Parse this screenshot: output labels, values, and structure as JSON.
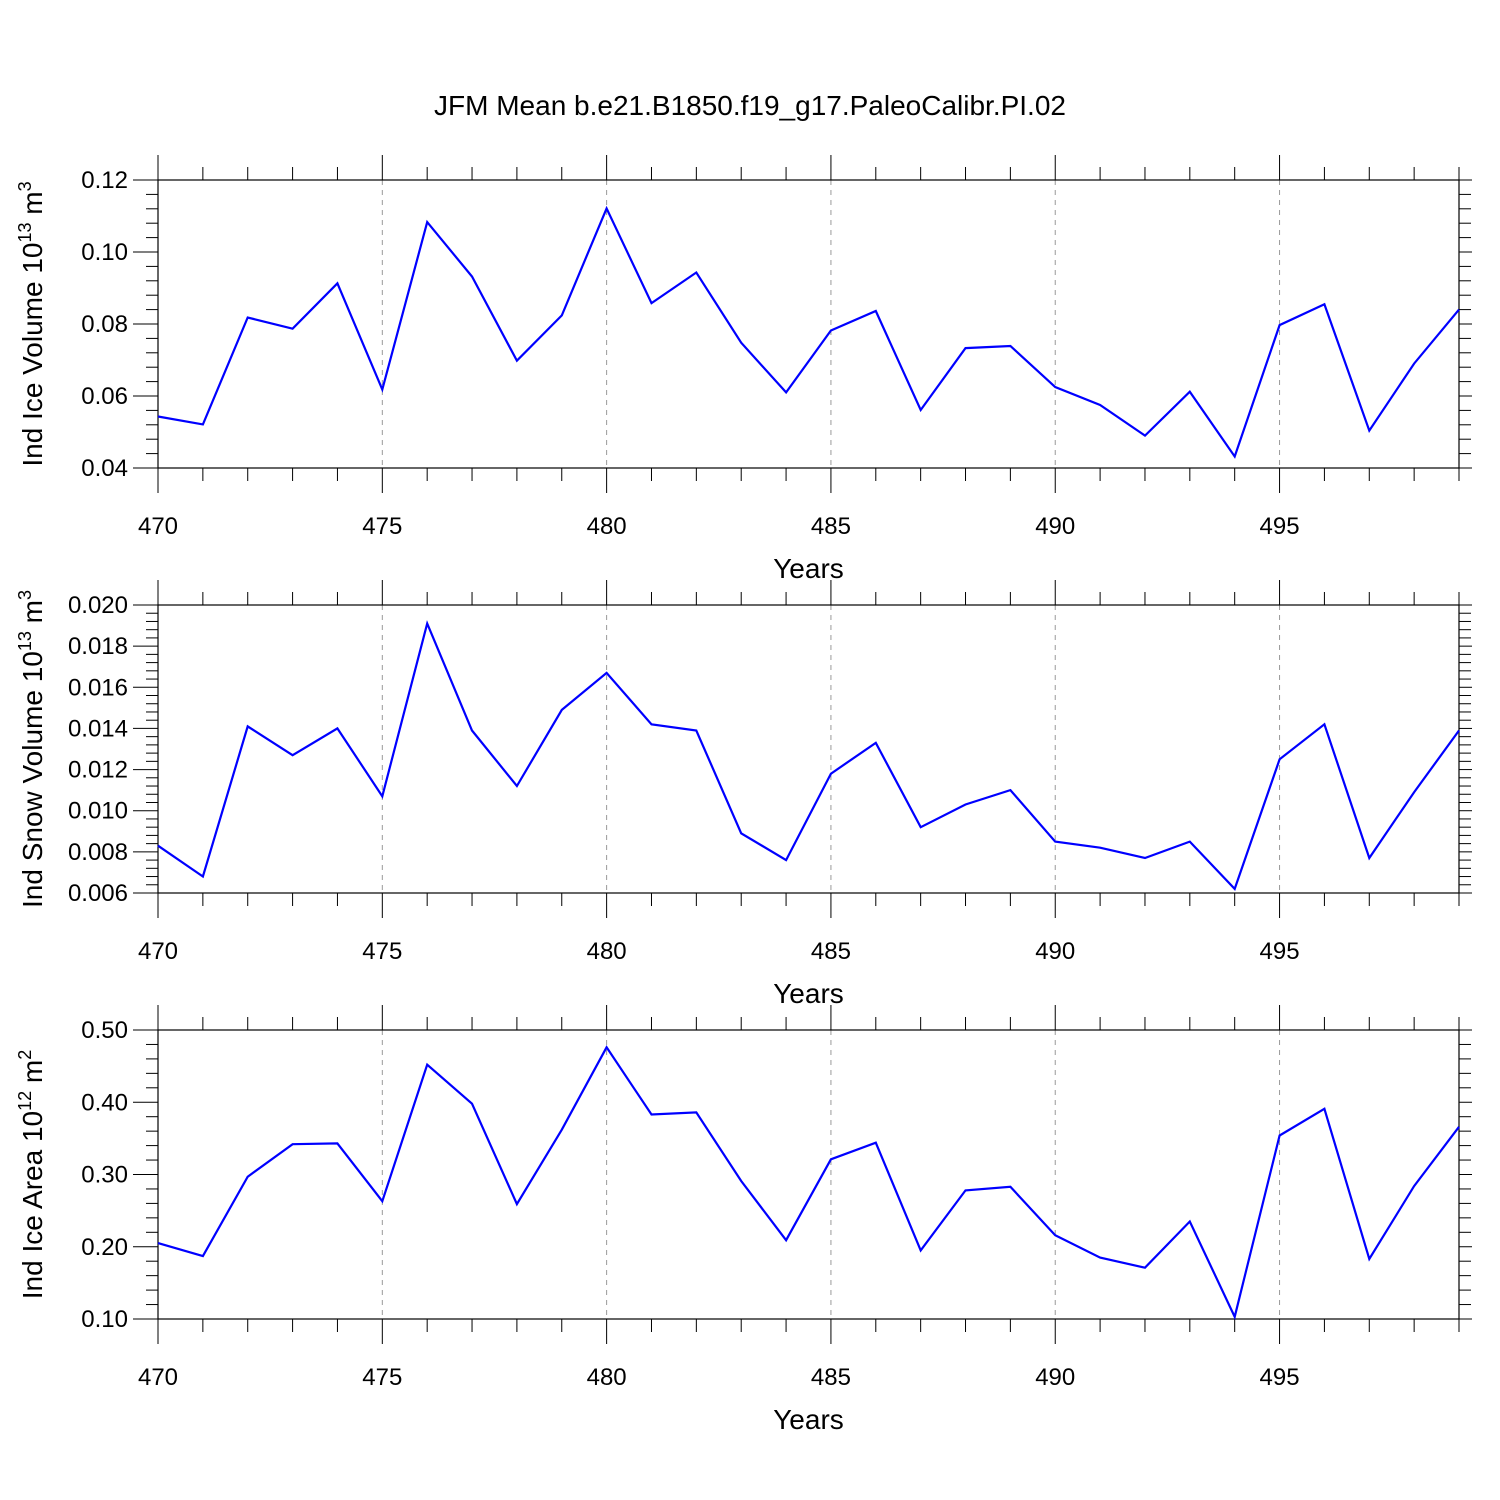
{
  "figure": {
    "title": "JFM Mean b.e21.B1850.f19_g17.PaleoCalibr.PI.02",
    "line_color": "#0000ff",
    "grid_color": "#999999"
  },
  "chart_data": [
    {
      "type": "line",
      "title": "",
      "xlabel": "Years",
      "ylabel": "Ind Ice Volume 10^13 m^3",
      "ylabel_parts": {
        "base": "Ind Ice Volume 10",
        "exp1": "13",
        "unit": " m",
        "exp2": "3"
      },
      "xlim": [
        470,
        499
      ],
      "ylim": [
        0.04,
        0.12
      ],
      "xticks": [
        470,
        475,
        480,
        485,
        490,
        495
      ],
      "xtick_labels": [
        "470",
        "475",
        "480",
        "485",
        "490",
        "495"
      ],
      "yticks": [
        0.04,
        0.06,
        0.08,
        0.1,
        0.12
      ],
      "ytick_labels": [
        "0.04",
        "0.06",
        "0.08",
        "0.10",
        "0.12"
      ],
      "grid": "vertical dashed at major x ticks",
      "x": [
        470,
        471,
        472,
        473,
        474,
        475,
        476,
        477,
        478,
        479,
        480,
        481,
        482,
        483,
        484,
        485,
        486,
        487,
        488,
        489,
        490,
        491,
        492,
        493,
        494,
        495,
        496,
        497,
        498,
        499
      ],
      "series": [
        {
          "values": [
            0.0543,
            0.0521,
            0.0818,
            0.0787,
            0.0913,
            0.0618,
            0.1083,
            0.0932,
            0.0698,
            0.0824,
            0.1121,
            0.0858,
            0.0943,
            0.0748,
            0.061,
            0.0782,
            0.0836,
            0.0561,
            0.0733,
            0.0739,
            0.0625,
            0.0575,
            0.049,
            0.0612,
            0.0432,
            0.0797,
            0.0855,
            0.0504,
            0.069,
            0.084
          ]
        }
      ]
    },
    {
      "type": "line",
      "title": "",
      "xlabel": "Years",
      "ylabel": "Ind Snow Volume 10^13 m^3",
      "ylabel_parts": {
        "base": "Ind Snow Volume 10",
        "exp1": "13",
        "unit": " m",
        "exp2": "3"
      },
      "xlim": [
        470,
        499
      ],
      "ylim": [
        0.006,
        0.02
      ],
      "xticks": [
        470,
        475,
        480,
        485,
        490,
        495
      ],
      "xtick_labels": [
        "470",
        "475",
        "480",
        "485",
        "490",
        "495"
      ],
      "yticks": [
        0.006,
        0.008,
        0.01,
        0.012,
        0.014,
        0.016,
        0.018,
        0.02
      ],
      "ytick_labels": [
        "0.006",
        "0.008",
        "0.010",
        "0.012",
        "0.014",
        "0.016",
        "0.018",
        "0.020"
      ],
      "grid": "vertical dashed at major x ticks",
      "x": [
        470,
        471,
        472,
        473,
        474,
        475,
        476,
        477,
        478,
        479,
        480,
        481,
        482,
        483,
        484,
        485,
        486,
        487,
        488,
        489,
        490,
        491,
        492,
        493,
        494,
        495,
        496,
        497,
        498,
        499
      ],
      "series": [
        {
          "values": [
            0.0083,
            0.0068,
            0.0141,
            0.0127,
            0.014,
            0.0107,
            0.0191,
            0.0139,
            0.0112,
            0.0149,
            0.0167,
            0.0142,
            0.0139,
            0.0089,
            0.0076,
            0.0118,
            0.0133,
            0.0092,
            0.0103,
            0.011,
            0.0085,
            0.0082,
            0.0077,
            0.0085,
            0.0062,
            0.0125,
            0.0142,
            0.0077,
            0.0109,
            0.0139
          ]
        }
      ]
    },
    {
      "type": "line",
      "title": "",
      "xlabel": "Years",
      "ylabel": "Ind Ice Area 10^12 m^2",
      "ylabel_parts": {
        "base": "Ind Ice Area 10",
        "exp1": "12",
        "unit": " m",
        "exp2": "2"
      },
      "xlim": [
        470,
        499
      ],
      "ylim": [
        0.1,
        0.5
      ],
      "xticks": [
        470,
        475,
        480,
        485,
        490,
        495
      ],
      "xtick_labels": [
        "470",
        "475",
        "480",
        "485",
        "490",
        "495"
      ],
      "yticks": [
        0.1,
        0.2,
        0.3,
        0.4,
        0.5
      ],
      "ytick_labels": [
        "0.10",
        "0.20",
        "0.30",
        "0.40",
        "0.50"
      ],
      "grid": "vertical dashed at major x ticks",
      "x": [
        470,
        471,
        472,
        473,
        474,
        475,
        476,
        477,
        478,
        479,
        480,
        481,
        482,
        483,
        484,
        485,
        486,
        487,
        488,
        489,
        490,
        491,
        492,
        493,
        494,
        495,
        496,
        497,
        498,
        499
      ],
      "series": [
        {
          "values": [
            0.205,
            0.187,
            0.297,
            0.342,
            0.343,
            0.263,
            0.452,
            0.398,
            0.259,
            0.362,
            0.476,
            0.383,
            0.386,
            0.291,
            0.209,
            0.321,
            0.344,
            0.195,
            0.278,
            0.283,
            0.216,
            0.185,
            0.171,
            0.235,
            0.103,
            0.354,
            0.391,
            0.183,
            0.284,
            0.366
          ]
        }
      ]
    }
  ]
}
